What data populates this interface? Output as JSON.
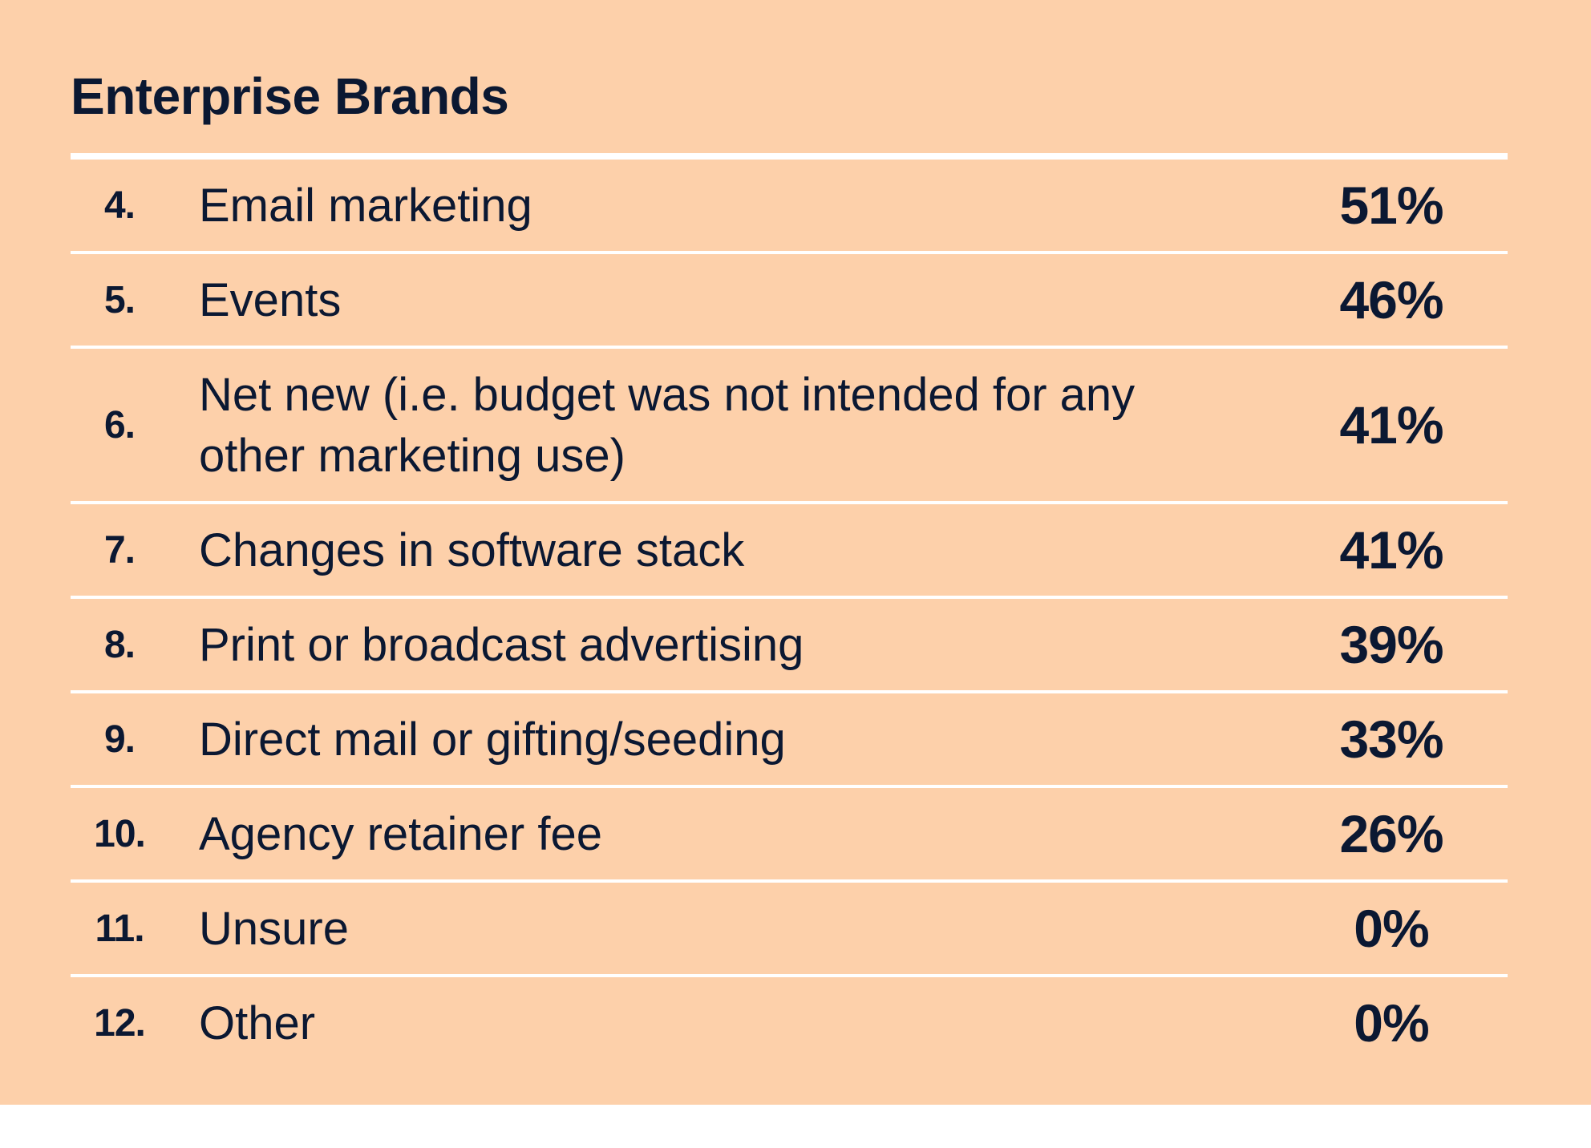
{
  "title": "Enterprise Brands",
  "colors": {
    "background": "#fdd0aa",
    "text": "#0b1832",
    "rule": "#ffffff"
  },
  "rows": [
    {
      "rank": "4.",
      "label": "Email marketing",
      "value": "51%"
    },
    {
      "rank": "5.",
      "label": "Events",
      "value": "46%"
    },
    {
      "rank": "6.",
      "label": "Net new (i.e. budget was not intended for any other marketing use)",
      "value": "41%"
    },
    {
      "rank": "7.",
      "label": "Changes in software stack",
      "value": "41%"
    },
    {
      "rank": "8.",
      "label": "Print or broadcast advertising",
      "value": "39%"
    },
    {
      "rank": "9.",
      "label": "Direct mail or gifting/seeding",
      "value": "33%"
    },
    {
      "rank": "10.",
      "label": "Agency retainer fee",
      "value": "26%"
    },
    {
      "rank": "11.",
      "label": "Unsure",
      "value": "0%"
    },
    {
      "rank": "12.",
      "label": "Other",
      "value": "0%"
    }
  ]
}
